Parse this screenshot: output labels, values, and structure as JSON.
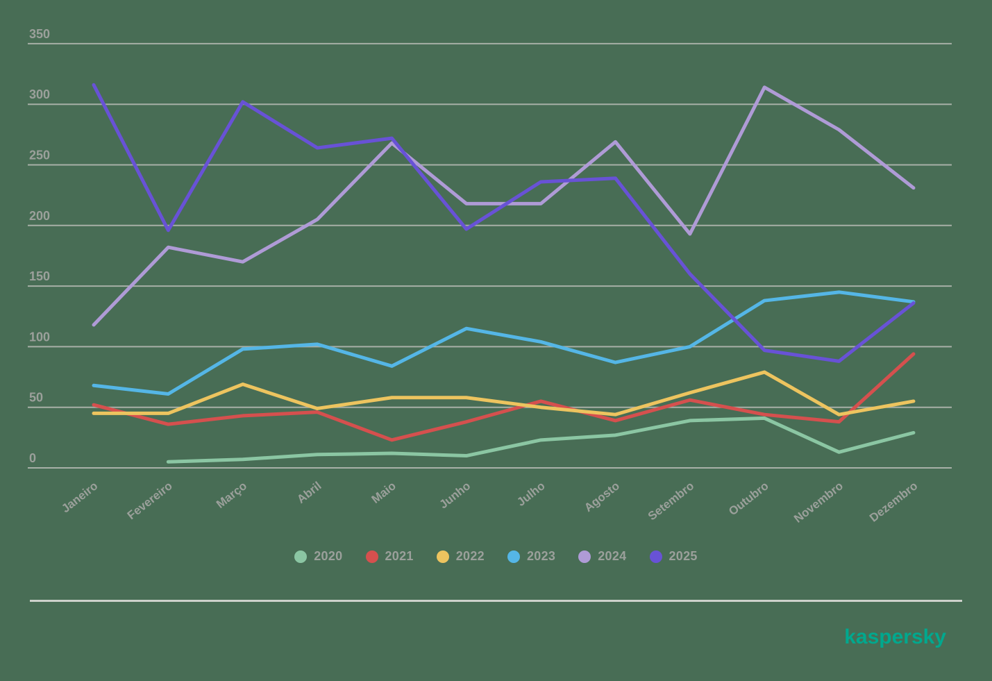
{
  "chart": {
    "background_color": "#486D55",
    "gridline_color": "#A7B0A7",
    "axis_text_color": "#9BA09B",
    "separator_color": "#CDD1CB"
  },
  "chart_data": {
    "type": "line",
    "title": "",
    "xlabel": "",
    "ylabel": "",
    "ylim": [
      0,
      350
    ],
    "y_ticks": [
      0,
      50,
      100,
      150,
      200,
      250,
      300,
      350
    ],
    "grid": "horizontal",
    "legend_position": "bottom",
    "categories": [
      "Janeiro",
      "Fevereiro",
      "Março",
      "Abril",
      "Maio",
      "Junho",
      "Julho",
      "Agosto",
      "Setembro",
      "Outubro",
      "Novembro",
      "Dezembro"
    ],
    "series": [
      {
        "name": "2020",
        "color": "#8BC6A3",
        "values": [
          null,
          5,
          7,
          11,
          12,
          10,
          23,
          27,
          39,
          41,
          13,
          29
        ]
      },
      {
        "name": "2021",
        "color": "#D5504E",
        "values": [
          52,
          36,
          43,
          46,
          23,
          38,
          55,
          39,
          56,
          44,
          38,
          94
        ]
      },
      {
        "name": "2022",
        "color": "#EDC45F",
        "values": [
          45,
          45,
          69,
          49,
          58,
          58,
          50,
          44,
          62,
          79,
          44,
          55
        ]
      },
      {
        "name": "2023",
        "color": "#55B6E6",
        "values": [
          68,
          61,
          98,
          102,
          84,
          115,
          104,
          87,
          100,
          138,
          145,
          137
        ]
      },
      {
        "name": "2024",
        "color": "#AF9BD6",
        "values": [
          118,
          182,
          170,
          205,
          268,
          218,
          218,
          269,
          193,
          314,
          279,
          231
        ]
      },
      {
        "name": "2025",
        "color": "#6852D6",
        "values": [
          316,
          196,
          302,
          264,
          272,
          197,
          236,
          239,
          160,
          97,
          88,
          136
        ]
      }
    ]
  },
  "legend": {
    "items": [
      "2020",
      "2021",
      "2022",
      "2023",
      "2024",
      "2025"
    ]
  },
  "branding": {
    "logo_text": "kaspersky",
    "logo_color": "#00A88E"
  }
}
